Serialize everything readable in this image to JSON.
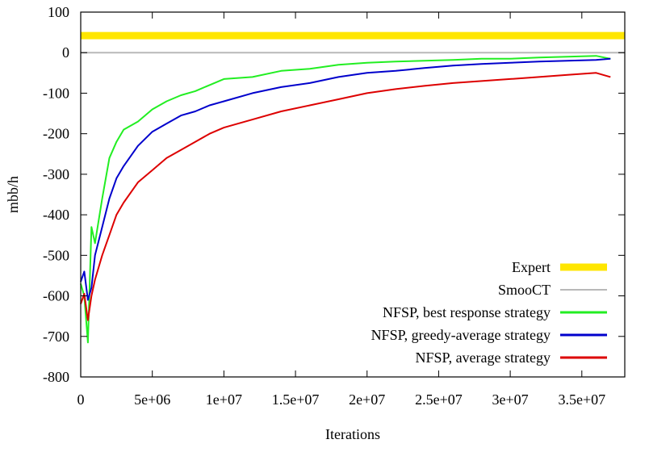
{
  "chart_data": {
    "type": "line",
    "xlabel": "Iterations",
    "ylabel": "mbb/h",
    "xlim": [
      0,
      38000000
    ],
    "ylim": [
      -800,
      100
    ],
    "x_ticks": [
      0,
      5000000,
      10000000,
      15000000,
      20000000,
      25000000,
      30000000,
      35000000
    ],
    "x_tick_labels": [
      "0",
      "5e+06",
      "1e+07",
      "1.5e+07",
      "2e+07",
      "2.5e+07",
      "3e+07",
      "3.5e+07"
    ],
    "y_ticks": [
      -800,
      -700,
      -600,
      -500,
      -400,
      -300,
      -200,
      -100,
      0,
      100
    ],
    "y_tick_labels": [
      "-800",
      "-700",
      "-600",
      "-500",
      "-400",
      "-300",
      "-200",
      "-100",
      "0",
      "100"
    ],
    "grid": false,
    "legend_position": "bottom-right",
    "colors": {
      "Expert": "#ffe600",
      "SmooCT": "#b8b8b8",
      "NFSP, best response strategy": "#22ee22",
      "NFSP, greedy-average strategy": "#0000cc",
      "NFSP, average strategy": "#dd0000"
    },
    "series": [
      {
        "name": "Expert",
        "style": "horizontal",
        "x": [
          0,
          38000000
        ],
        "values": [
          42,
          42
        ]
      },
      {
        "name": "SmooCT",
        "style": "horizontal",
        "x": [
          0,
          38000000
        ],
        "values": [
          0,
          0
        ]
      },
      {
        "name": "NFSP, best response strategy",
        "x": [
          0,
          250000,
          500000,
          750000,
          1000000,
          1500000,
          2000000,
          2500000,
          3000000,
          4000000,
          5000000,
          6000000,
          7000000,
          8000000,
          9000000,
          10000000,
          12000000,
          14000000,
          16000000,
          18000000,
          20000000,
          22000000,
          24000000,
          26000000,
          28000000,
          30000000,
          32000000,
          34000000,
          36000000,
          37000000
        ],
        "values": [
          -570,
          -600,
          -715,
          -430,
          -470,
          -360,
          -260,
          -220,
          -190,
          -170,
          -140,
          -120,
          -105,
          -95,
          -80,
          -65,
          -60,
          -45,
          -40,
          -30,
          -25,
          -22,
          -20,
          -18,
          -15,
          -15,
          -12,
          -10,
          -8,
          -15
        ]
      },
      {
        "name": "NFSP, greedy-average strategy",
        "x": [
          0,
          250000,
          500000,
          750000,
          1000000,
          1500000,
          2000000,
          2500000,
          3000000,
          4000000,
          5000000,
          6000000,
          7000000,
          8000000,
          9000000,
          10000000,
          12000000,
          14000000,
          16000000,
          18000000,
          20000000,
          22000000,
          24000000,
          26000000,
          28000000,
          30000000,
          32000000,
          34000000,
          36000000,
          37000000
        ],
        "values": [
          -565,
          -540,
          -610,
          -580,
          -500,
          -430,
          -360,
          -310,
          -280,
          -230,
          -195,
          -175,
          -155,
          -145,
          -130,
          -120,
          -100,
          -85,
          -75,
          -60,
          -50,
          -45,
          -38,
          -32,
          -28,
          -25,
          -22,
          -20,
          -18,
          -15
        ]
      },
      {
        "name": "NFSP, average strategy",
        "x": [
          0,
          250000,
          500000,
          750000,
          1000000,
          1500000,
          2000000,
          2500000,
          3000000,
          4000000,
          5000000,
          6000000,
          7000000,
          8000000,
          9000000,
          10000000,
          12000000,
          14000000,
          16000000,
          18000000,
          20000000,
          22000000,
          24000000,
          26000000,
          28000000,
          30000000,
          32000000,
          34000000,
          36000000,
          37000000
        ],
        "values": [
          -620,
          -595,
          -660,
          -600,
          -560,
          -500,
          -450,
          -400,
          -370,
          -320,
          -290,
          -260,
          -240,
          -220,
          -200,
          -185,
          -165,
          -145,
          -130,
          -115,
          -100,
          -90,
          -82,
          -75,
          -70,
          -65,
          -60,
          -55,
          -50,
          -60
        ]
      }
    ]
  }
}
